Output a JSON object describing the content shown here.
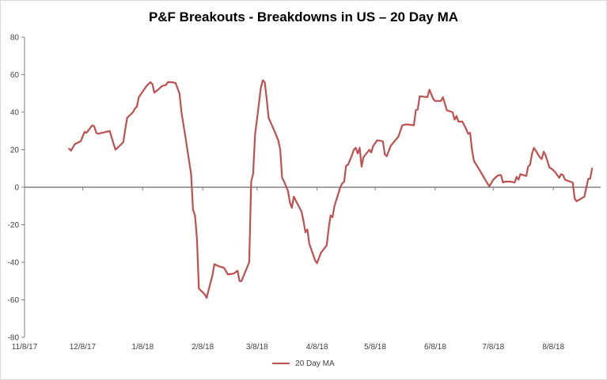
{
  "chart_data": {
    "type": "line",
    "title": "P&F Breakouts - Breakdowns in US – 20 Day MA",
    "xlabel": "",
    "ylabel": "",
    "ylim": [
      -80,
      80
    ],
    "y_ticks": [
      -80,
      -60,
      -40,
      -20,
      0,
      20,
      40,
      60,
      80
    ],
    "x_tick_labels": [
      "11/8/17",
      "12/8/17",
      "1/8/18",
      "2/8/18",
      "3/8/18",
      "4/8/18",
      "5/8/18",
      "6/8/18",
      "7/8/18",
      "8/8/18"
    ],
    "grid": false,
    "legend": "bottom",
    "series_color": "#c0504d",
    "series": [
      {
        "name": "20 Day MA",
        "points": [
          [
            "2017-12-01",
            20.5
          ],
          [
            "2017-12-02",
            19.5
          ],
          [
            "2017-12-04",
            23
          ],
          [
            "2017-12-07",
            24.5
          ],
          [
            "2017-12-09",
            29.5
          ],
          [
            "2017-12-10",
            29
          ],
          [
            "2017-12-13",
            33
          ],
          [
            "2017-12-14",
            32.5
          ],
          [
            "2017-12-15",
            29
          ],
          [
            "2017-12-16",
            28.5
          ],
          [
            "2017-12-22",
            30
          ],
          [
            "2017-12-24",
            23
          ],
          [
            "2017-12-25",
            20
          ],
          [
            "2017-12-29",
            24
          ],
          [
            "2017-12-30",
            31
          ],
          [
            "2017-12-31",
            37
          ],
          [
            "2018-01-03",
            40
          ],
          [
            "2018-01-04",
            42
          ],
          [
            "2018-01-05",
            43
          ],
          [
            "2018-01-06",
            48
          ],
          [
            "2018-01-08",
            51
          ],
          [
            "2018-01-10",
            54
          ],
          [
            "2018-01-12",
            56
          ],
          [
            "2018-01-13",
            55
          ],
          [
            "2018-01-14",
            50.5
          ],
          [
            "2018-01-16",
            52
          ],
          [
            "2018-01-18",
            54
          ],
          [
            "2018-01-20",
            54.5
          ],
          [
            "2018-01-21",
            56
          ],
          [
            "2018-01-23",
            56
          ],
          [
            "2018-01-25",
            55.5
          ],
          [
            "2018-01-27",
            50
          ],
          [
            "2018-01-28",
            40
          ],
          [
            "2018-01-30",
            27
          ],
          [
            "2018-02-02",
            7
          ],
          [
            "2018-02-03",
            -12
          ],
          [
            "2018-02-04",
            -15
          ],
          [
            "2018-02-05",
            -27
          ],
          [
            "2018-02-06",
            -54
          ],
          [
            "2018-02-09",
            -57
          ],
          [
            "2018-02-10",
            -59
          ],
          [
            "2018-02-11",
            -55
          ],
          [
            "2018-02-13",
            -47
          ],
          [
            "2018-02-14",
            -41
          ],
          [
            "2018-02-16",
            -42
          ],
          [
            "2018-02-19",
            -43
          ],
          [
            "2018-02-21",
            -46.5
          ],
          [
            "2018-02-24",
            -46
          ],
          [
            "2018-02-26",
            -44.5
          ],
          [
            "2018-02-27",
            -50
          ],
          [
            "2018-02-28",
            -50
          ],
          [
            "2018-03-04",
            -40
          ],
          [
            "2018-03-05",
            3
          ],
          [
            "2018-03-06",
            7
          ],
          [
            "2018-03-07",
            28
          ],
          [
            "2018-03-08",
            36
          ],
          [
            "2018-03-10",
            53
          ],
          [
            "2018-03-11",
            57
          ],
          [
            "2018-03-12",
            56
          ],
          [
            "2018-03-13",
            47
          ],
          [
            "2018-03-14",
            37
          ],
          [
            "2018-03-17",
            30
          ],
          [
            "2018-03-19",
            25
          ],
          [
            "2018-03-20",
            20
          ],
          [
            "2018-03-21",
            5
          ],
          [
            "2018-03-22",
            3
          ],
          [
            "2018-03-24",
            -2
          ],
          [
            "2018-03-25",
            -8
          ],
          [
            "2018-03-26",
            -11
          ],
          [
            "2018-03-27",
            -5
          ],
          [
            "2018-03-31",
            -13
          ],
          [
            "2018-04-01",
            -18
          ],
          [
            "2018-04-02",
            -24
          ],
          [
            "2018-04-03",
            -22.5
          ],
          [
            "2018-04-04",
            -30
          ],
          [
            "2018-04-07",
            -39
          ],
          [
            "2018-04-08",
            -40.5
          ],
          [
            "2018-04-10",
            -35
          ],
          [
            "2018-04-13",
            -31
          ],
          [
            "2018-04-14",
            -22
          ],
          [
            "2018-04-15",
            -15
          ],
          [
            "2018-04-16",
            -16
          ],
          [
            "2018-04-17",
            -10
          ],
          [
            "2018-04-20",
            0
          ],
          [
            "2018-04-21",
            2
          ],
          [
            "2018-04-22",
            3
          ],
          [
            "2018-04-23",
            11.5
          ],
          [
            "2018-04-24",
            12
          ],
          [
            "2018-04-26",
            17
          ],
          [
            "2018-04-27",
            20
          ],
          [
            "2018-04-28",
            21
          ],
          [
            "2018-04-29",
            18
          ],
          [
            "2018-04-30",
            21
          ],
          [
            "2018-05-01",
            11
          ],
          [
            "2018-05-02",
            16
          ],
          [
            "2018-05-05",
            20
          ],
          [
            "2018-05-06",
            18.5
          ],
          [
            "2018-05-07",
            22
          ],
          [
            "2018-05-09",
            25
          ],
          [
            "2018-05-12",
            24.5
          ],
          [
            "2018-05-13",
            17.5
          ],
          [
            "2018-05-14",
            16.5
          ],
          [
            "2018-05-16",
            22
          ],
          [
            "2018-05-20",
            27
          ],
          [
            "2018-05-22",
            33
          ],
          [
            "2018-05-24",
            33.5
          ],
          [
            "2018-05-28",
            33
          ],
          [
            "2018-05-29",
            41
          ],
          [
            "2018-05-30",
            41.5
          ],
          [
            "2018-05-31",
            48.5
          ],
          [
            "2018-06-04",
            48
          ],
          [
            "2018-06-05",
            52
          ],
          [
            "2018-06-07",
            47
          ],
          [
            "2018-06-08",
            46
          ],
          [
            "2018-06-11",
            46
          ],
          [
            "2018-06-12",
            48
          ],
          [
            "2018-06-14",
            41
          ],
          [
            "2018-06-17",
            40
          ],
          [
            "2018-06-18",
            36
          ],
          [
            "2018-06-19",
            38
          ],
          [
            "2018-06-20",
            35
          ],
          [
            "2018-06-22",
            35
          ],
          [
            "2018-06-24",
            31
          ],
          [
            "2018-06-25",
            28.5
          ],
          [
            "2018-06-26",
            29
          ],
          [
            "2018-06-27",
            20
          ],
          [
            "2018-06-28",
            14
          ],
          [
            "2018-07-01",
            9
          ],
          [
            "2018-07-05",
            2
          ],
          [
            "2018-07-06",
            0.5
          ],
          [
            "2018-07-08",
            4
          ],
          [
            "2018-07-10",
            6
          ],
          [
            "2018-07-11",
            6.5
          ],
          [
            "2018-07-12",
            6.5
          ],
          [
            "2018-07-13",
            2.5
          ],
          [
            "2018-07-14",
            3
          ],
          [
            "2018-07-17",
            3
          ],
          [
            "2018-07-19",
            2.5
          ],
          [
            "2018-07-20",
            5.5
          ],
          [
            "2018-07-21",
            4
          ],
          [
            "2018-07-22",
            7
          ],
          [
            "2018-07-25",
            6
          ],
          [
            "2018-07-26",
            11
          ],
          [
            "2018-07-27",
            12
          ],
          [
            "2018-07-28",
            18
          ],
          [
            "2018-07-29",
            21
          ],
          [
            "2018-08-01",
            16
          ],
          [
            "2018-08-02",
            15
          ],
          [
            "2018-08-03",
            19
          ],
          [
            "2018-08-04",
            17
          ],
          [
            "2018-08-06",
            10.5
          ],
          [
            "2018-08-07",
            10
          ],
          [
            "2018-08-09",
            8
          ],
          [
            "2018-08-10",
            6.5
          ],
          [
            "2018-08-11",
            5
          ],
          [
            "2018-08-12",
            7
          ],
          [
            "2018-08-13",
            6.5
          ],
          [
            "2018-08-14",
            4
          ],
          [
            "2018-08-18",
            2.5
          ],
          [
            "2018-08-19",
            -6
          ],
          [
            "2018-08-20",
            -7.5
          ],
          [
            "2018-08-24",
            -5
          ],
          [
            "2018-08-26",
            4.5
          ],
          [
            "2018-08-27",
            4.5
          ],
          [
            "2018-08-28",
            10
          ]
        ]
      }
    ]
  }
}
